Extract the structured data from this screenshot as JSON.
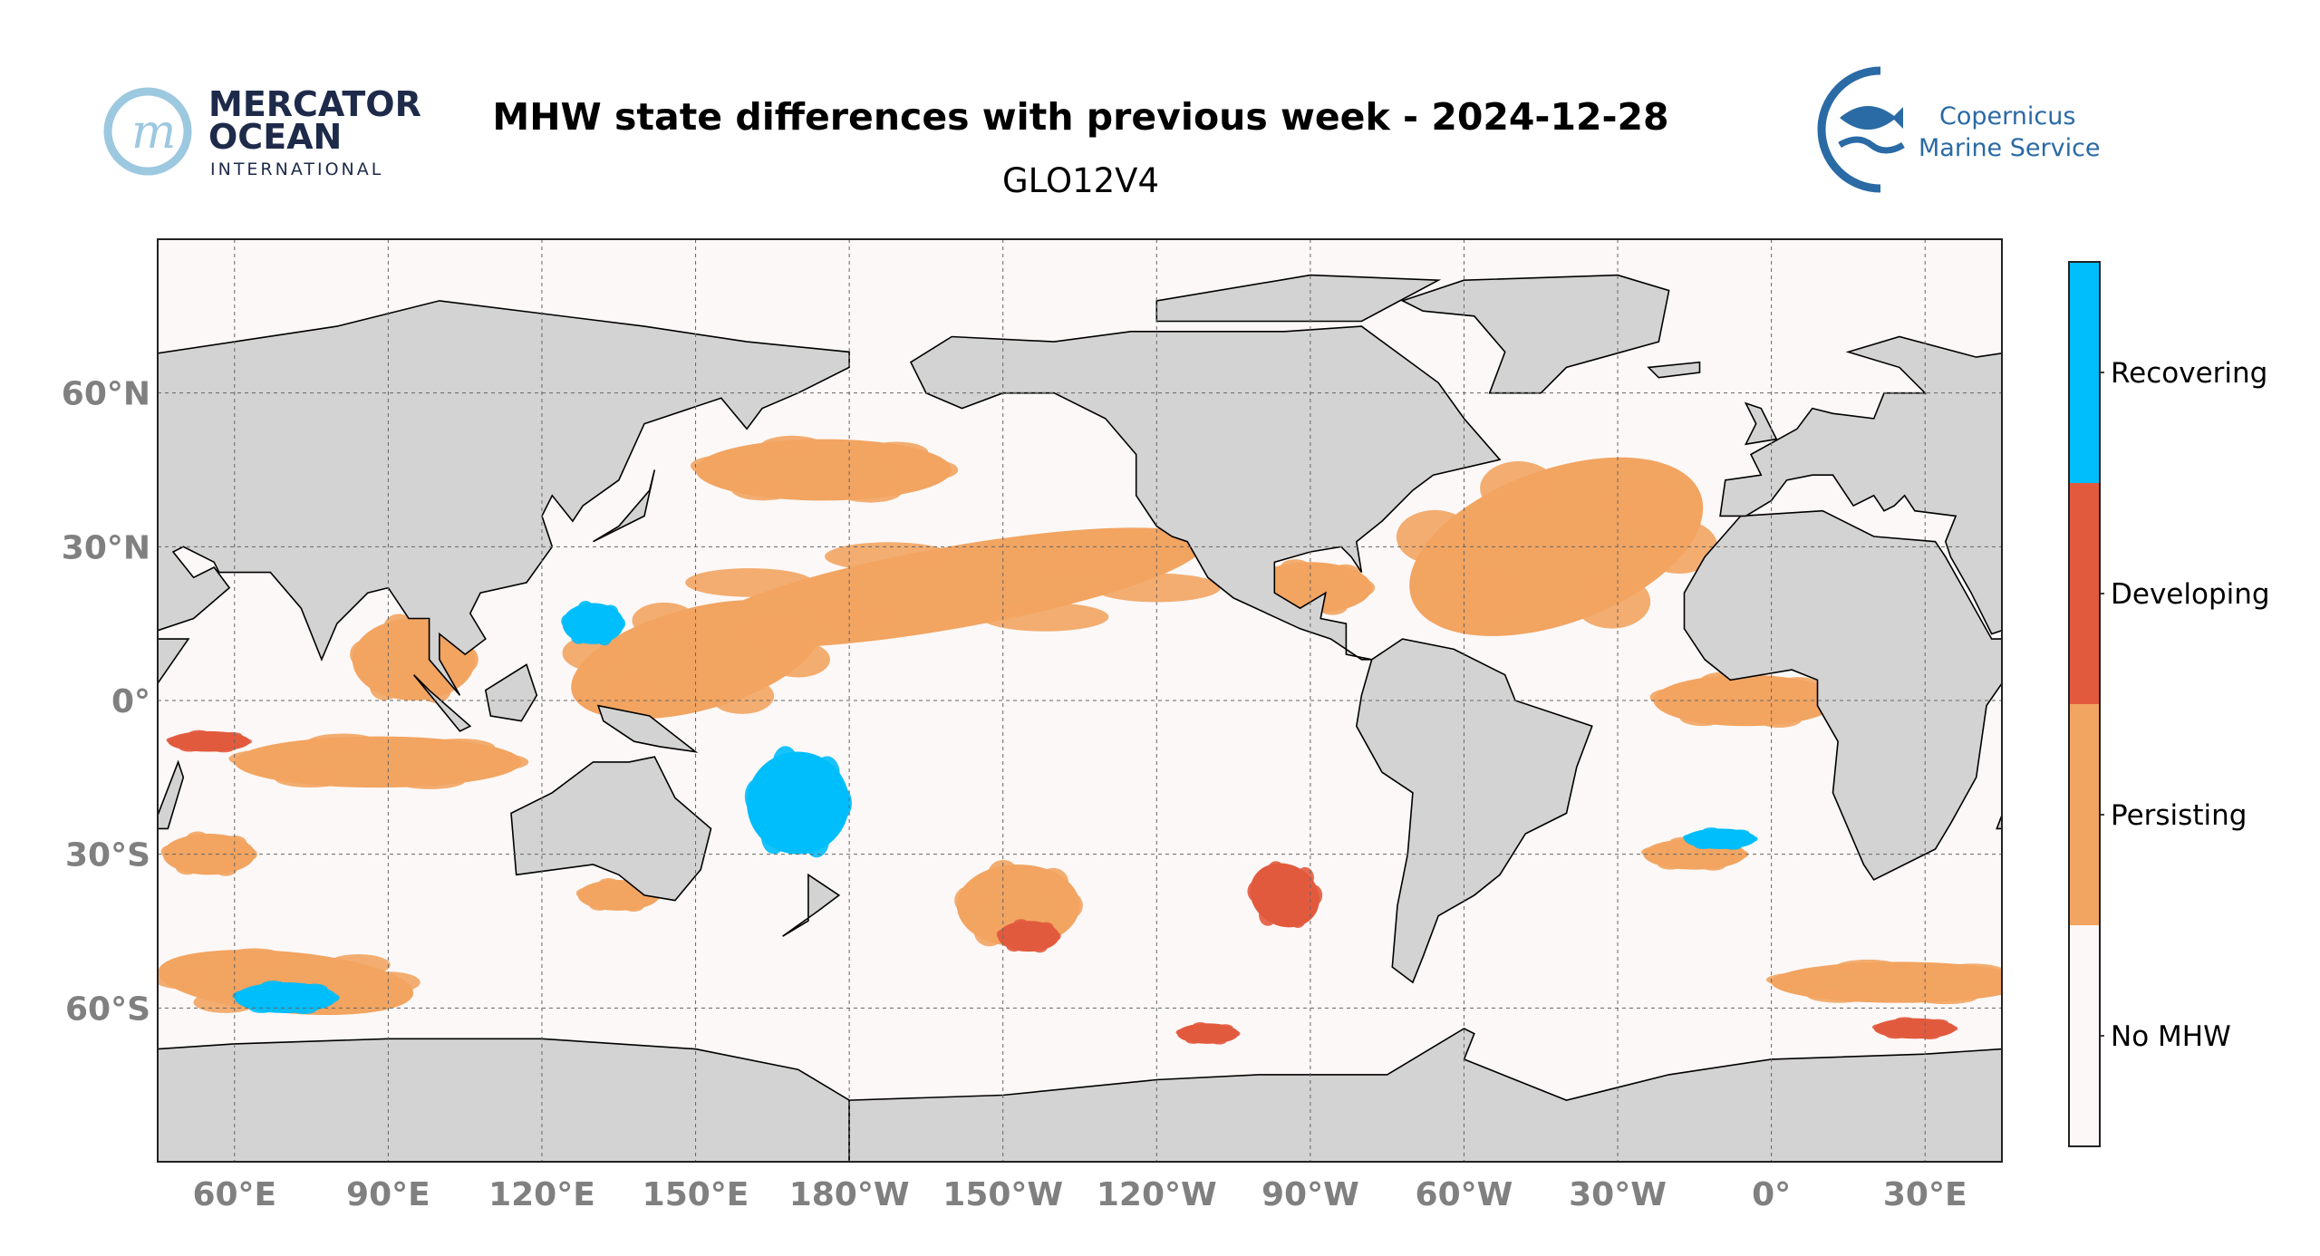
{
  "header": {
    "title": "MHW state differences with previous week - 2024-12-28",
    "subtitle": "GLO12V4"
  },
  "logos": {
    "left": {
      "line1": "MERCATOR",
      "line2": "OCEAN",
      "line3": "INTERNATIONAL"
    },
    "right": {
      "line1": "Copernicus",
      "line2": "Marine Service"
    }
  },
  "colors": {
    "land": "#d3d3d3",
    "ocean": "#fcf8f7",
    "coast": "#000000",
    "recovering": "#00bdfb",
    "developing": "#e25a3e",
    "persisting": "#f2a461",
    "no_mhw": "#fcf8f7",
    "tick": "#808080"
  },
  "chart_data": {
    "type": "heatmap",
    "title": "MHW state differences with previous week - 2024-12-28",
    "subtitle": "GLO12V4",
    "projection": "PlateCarree",
    "lon_range": [
      45,
      405
    ],
    "lat_range": [
      -90,
      90
    ],
    "central_longitude": -135,
    "grid": true,
    "x_ticks": [
      {
        "lon": 60,
        "label": "60°E"
      },
      {
        "lon": 90,
        "label": "90°E"
      },
      {
        "lon": 120,
        "label": "120°E"
      },
      {
        "lon": 150,
        "label": "150°E"
      },
      {
        "lon": 180,
        "label": "180°W"
      },
      {
        "lon": 210,
        "label": "150°W"
      },
      {
        "lon": 240,
        "label": "120°W"
      },
      {
        "lon": 270,
        "label": "90°W"
      },
      {
        "lon": 300,
        "label": "60°W"
      },
      {
        "lon": 330,
        "label": "30°W"
      },
      {
        "lon": 360,
        "label": "0°"
      },
      {
        "lon": 390,
        "label": "30°E"
      }
    ],
    "y_ticks": [
      {
        "lat": 60,
        "label": "60°N"
      },
      {
        "lat": 30,
        "label": "30°N"
      },
      {
        "lat": 0,
        "label": "0°"
      },
      {
        "lat": -30,
        "label": "30°S"
      },
      {
        "lat": -60,
        "label": "60°S"
      }
    ],
    "legend": {
      "placement": "right",
      "categories": [
        "Recovering",
        "Developing",
        "Persisting",
        "No MHW"
      ]
    },
    "regions": [
      {
        "state": "persisting",
        "lon": 200,
        "lat": 22,
        "rlon": 50,
        "rlat": 8,
        "rot": -10
      },
      {
        "state": "persisting",
        "lon": 150,
        "lat": 8,
        "rlon": 25,
        "rlat": 10,
        "rot": -15
      },
      {
        "state": "persisting",
        "lon": 175,
        "lat": 45,
        "rlon": 25,
        "rlat": 6,
        "rot": 0
      },
      {
        "state": "persisting",
        "lon": 88,
        "lat": -12,
        "rlon": 28,
        "rlat": 5,
        "rot": 0
      },
      {
        "state": "persisting",
        "lon": 95,
        "lat": 8,
        "rlon": 12,
        "rlat": 8,
        "rot": 0
      },
      {
        "state": "persisting",
        "lon": 318,
        "lat": 30,
        "rlon": 30,
        "rlat": 15,
        "rot": -20
      },
      {
        "state": "persisting",
        "lon": 270,
        "lat": 22,
        "rlon": 12,
        "rlat": 5,
        "rot": 0
      },
      {
        "state": "persisting",
        "lon": 355,
        "lat": 0,
        "rlon": 18,
        "rlat": 5,
        "rot": 0
      },
      {
        "state": "persisting",
        "lon": 385,
        "lat": -55,
        "rlon": 25,
        "rlat": 4,
        "rot": 0
      },
      {
        "state": "persisting",
        "lon": 70,
        "lat": -55,
        "rlon": 25,
        "rlat": 6,
        "rot": 5
      },
      {
        "state": "persisting",
        "lon": 213,
        "lat": -40,
        "rlon": 12,
        "rlat": 8,
        "rot": 0
      },
      {
        "state": "persisting",
        "lon": 345,
        "lat": -30,
        "rlon": 10,
        "rlat": 3,
        "rot": 0
      },
      {
        "state": "persisting",
        "lon": 55,
        "lat": -30,
        "rlon": 9,
        "rlat": 4,
        "rot": 0
      },
      {
        "state": "persisting",
        "lon": 135,
        "lat": -38,
        "rlon": 8,
        "rlat": 3,
        "rot": 0
      },
      {
        "state": "recovering",
        "lon": 170,
        "lat": -20,
        "rlon": 10,
        "rlat": 10,
        "rot": 0
      },
      {
        "state": "recovering",
        "lon": 70,
        "lat": -58,
        "rlon": 10,
        "rlat": 3,
        "rot": 0
      },
      {
        "state": "recovering",
        "lon": 350,
        "lat": -27,
        "rlon": 7,
        "rlat": 2,
        "rot": 0
      },
      {
        "state": "recovering",
        "lon": 130,
        "lat": 15,
        "rlon": 6,
        "rlat": 4,
        "rot": 0
      },
      {
        "state": "developing",
        "lon": 265,
        "lat": -38,
        "rlon": 7,
        "rlat": 6,
        "rot": 30
      },
      {
        "state": "developing",
        "lon": 388,
        "lat": -64,
        "rlon": 8,
        "rlat": 2,
        "rot": 0
      },
      {
        "state": "developing",
        "lon": 250,
        "lat": -65,
        "rlon": 6,
        "rlat": 2,
        "rot": 0
      },
      {
        "state": "developing",
        "lon": 215,
        "lat": -46,
        "rlon": 6,
        "rlat": 3,
        "rot": 0
      },
      {
        "state": "developing",
        "lon": 55,
        "lat": -8,
        "rlon": 8,
        "rlat": 2,
        "rot": 0
      }
    ]
  }
}
